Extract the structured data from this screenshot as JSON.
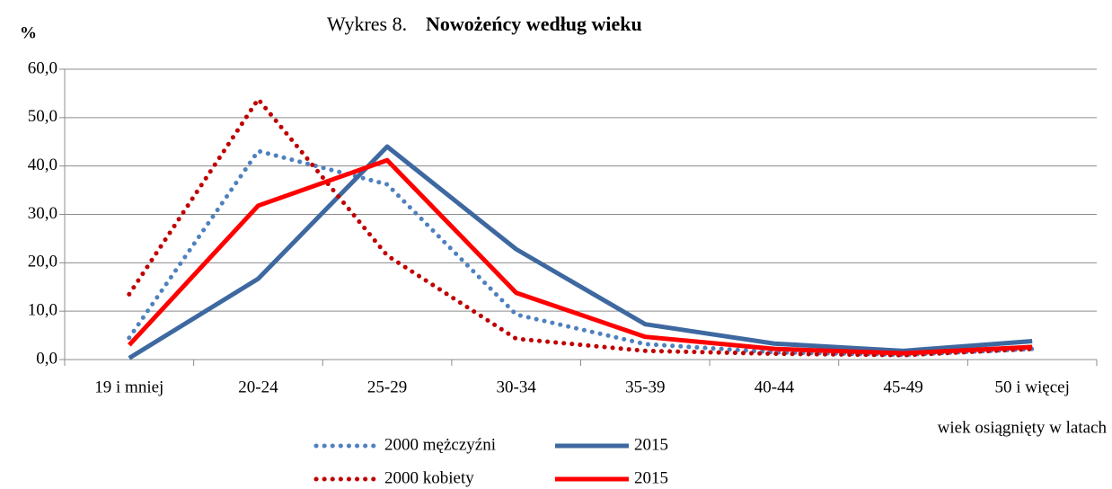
{
  "chart_data": {
    "type": "line",
    "title_label": "Wykres 8.",
    "title": "Nowożeńcy według wieku",
    "y_label": "%",
    "x_label": "wiek osiągnięty w latach",
    "categories": [
      "19 i mniej",
      "20-24",
      "25-29",
      "30-34",
      "35-39",
      "40-44",
      "45-49",
      "50 i więcej"
    ],
    "series": [
      {
        "name": "2000 mężczyźni",
        "color": "#4f81bd",
        "style": "dotted",
        "values": [
          4.5,
          43.1,
          36.2,
          9.3,
          3.2,
          1.5,
          1.0,
          2.2
        ]
      },
      {
        "name": "2015",
        "color": "#3e68a0",
        "style": "solid",
        "values": [
          0.3,
          16.7,
          44.0,
          22.8,
          7.3,
          3.3,
          1.8,
          3.8
        ]
      },
      {
        "name": "2000 kobiety",
        "color": "#c00000",
        "style": "dotted",
        "values": [
          13.5,
          53.8,
          21.5,
          4.3,
          1.8,
          1.2,
          0.9,
          2.2
        ]
      },
      {
        "name": "2015",
        "color": "#ff0000",
        "style": "solid",
        "values": [
          3.0,
          31.8,
          41.2,
          13.8,
          4.7,
          2.2,
          1.3,
          2.6
        ]
      }
    ],
    "ylim": [
      0,
      60
    ],
    "yticks": [
      {
        "value": 0,
        "label": "0,0"
      },
      {
        "value": 10,
        "label": "10,0"
      },
      {
        "value": 20,
        "label": "20,0"
      },
      {
        "value": 30,
        "label": "30,0"
      },
      {
        "value": 40,
        "label": "40,0"
      },
      {
        "value": 50,
        "label": "50,0"
      },
      {
        "value": 60,
        "label": "60,0"
      }
    ],
    "grid": true
  }
}
